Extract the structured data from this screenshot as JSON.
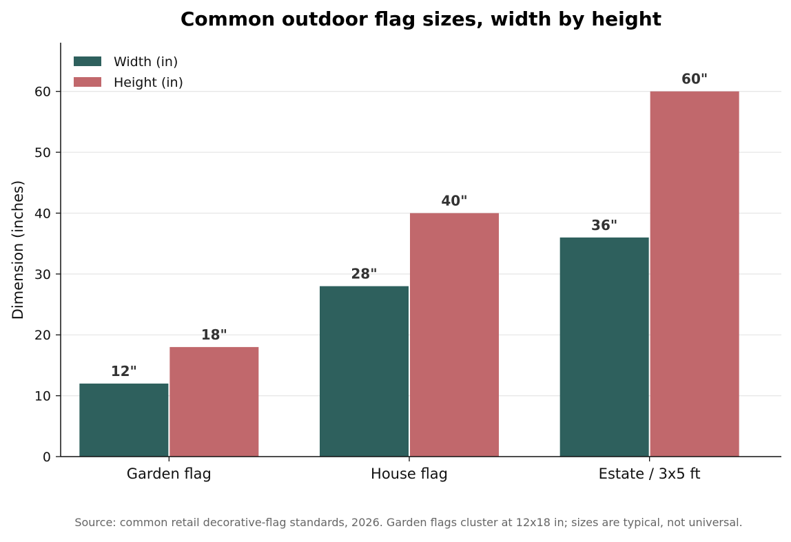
{
  "chart_data": {
    "type": "bar",
    "title": "Common outdoor flag sizes, width by height",
    "ylabel": "Dimension (inches)",
    "xlabel": "",
    "categories": [
      "Garden flag",
      "House flag",
      "Estate / 3x5 ft"
    ],
    "series": [
      {
        "name": "Width (in)",
        "values": [
          12,
          28,
          36
        ],
        "labels": [
          "12\"",
          "28\"",
          "36\""
        ],
        "color": "#2e605d"
      },
      {
        "name": "Height (in)",
        "values": [
          18,
          40,
          60
        ],
        "labels": [
          "18\"",
          "40\"",
          "60\""
        ],
        "color": "#c1686c"
      }
    ],
    "ylim": [
      0,
      68
    ],
    "yticks": [
      0,
      10,
      20,
      30,
      40,
      50,
      60
    ],
    "grid": "horizontal",
    "legend_position": "top-left",
    "source": "Source: common retail decorative-flag standards, 2026. Garden flags cluster at 12x18 in; sizes are typical, not universal."
  }
}
